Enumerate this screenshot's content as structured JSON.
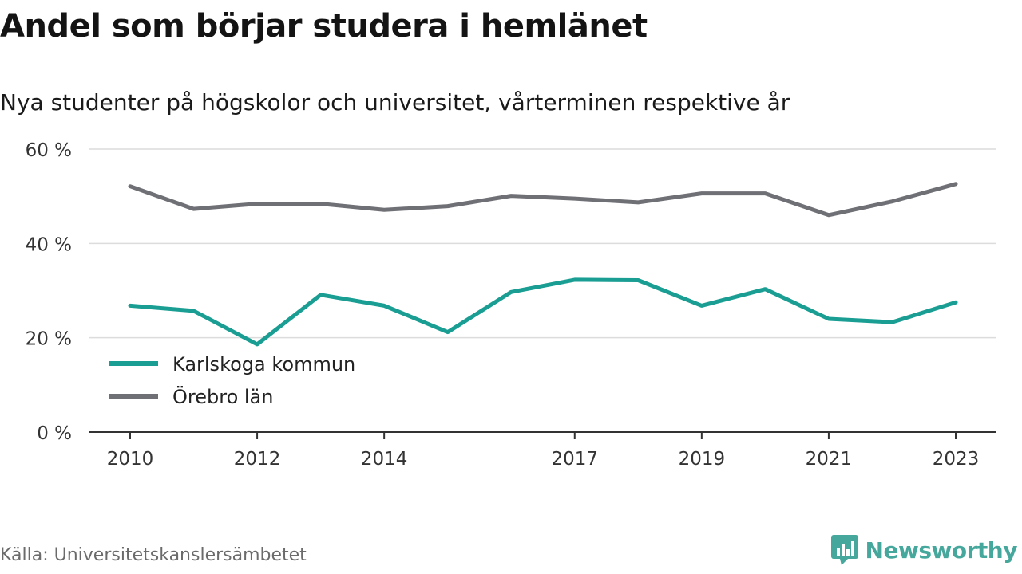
{
  "chart_data": {
    "type": "line",
    "title": "Andel som börjar studera i hemlänet",
    "subtitle": "Nya studenter på högskolor och universitet, vårterminen respektive år",
    "x": [
      2010,
      2011,
      2012,
      2013,
      2014,
      2015,
      2016,
      2017,
      2018,
      2019,
      2020,
      2021,
      2022,
      2023
    ],
    "x_tick_labels": [
      "2010",
      "2012",
      "2014",
      "2017",
      "2019",
      "2021",
      "2023"
    ],
    "y_tick_labels": [
      "0 %",
      "20 %",
      "40 %",
      "60 %"
    ],
    "ylim": [
      0,
      60
    ],
    "grid": true,
    "legend_position": "bottom-left",
    "series": [
      {
        "name": "Karlskoga kommun",
        "color": "#1a9e93",
        "values": [
          26.8,
          25.7,
          18.6,
          29.1,
          26.8,
          21.2,
          29.7,
          32.3,
          32.2,
          26.8,
          30.3,
          24.0,
          23.3,
          27.5
        ]
      },
      {
        "name": "Örebro län",
        "color": "#6f6f76",
        "values": [
          52.1,
          47.3,
          48.4,
          48.4,
          47.1,
          47.9,
          50.1,
          49.5,
          48.7,
          50.6,
          50.6,
          46.0,
          48.9,
          52.6
        ]
      }
    ]
  },
  "footer": {
    "source": "Källa: Universitetskanslersämbetet",
    "brand": "Newsworthy",
    "brand_color": "#46a89c"
  }
}
